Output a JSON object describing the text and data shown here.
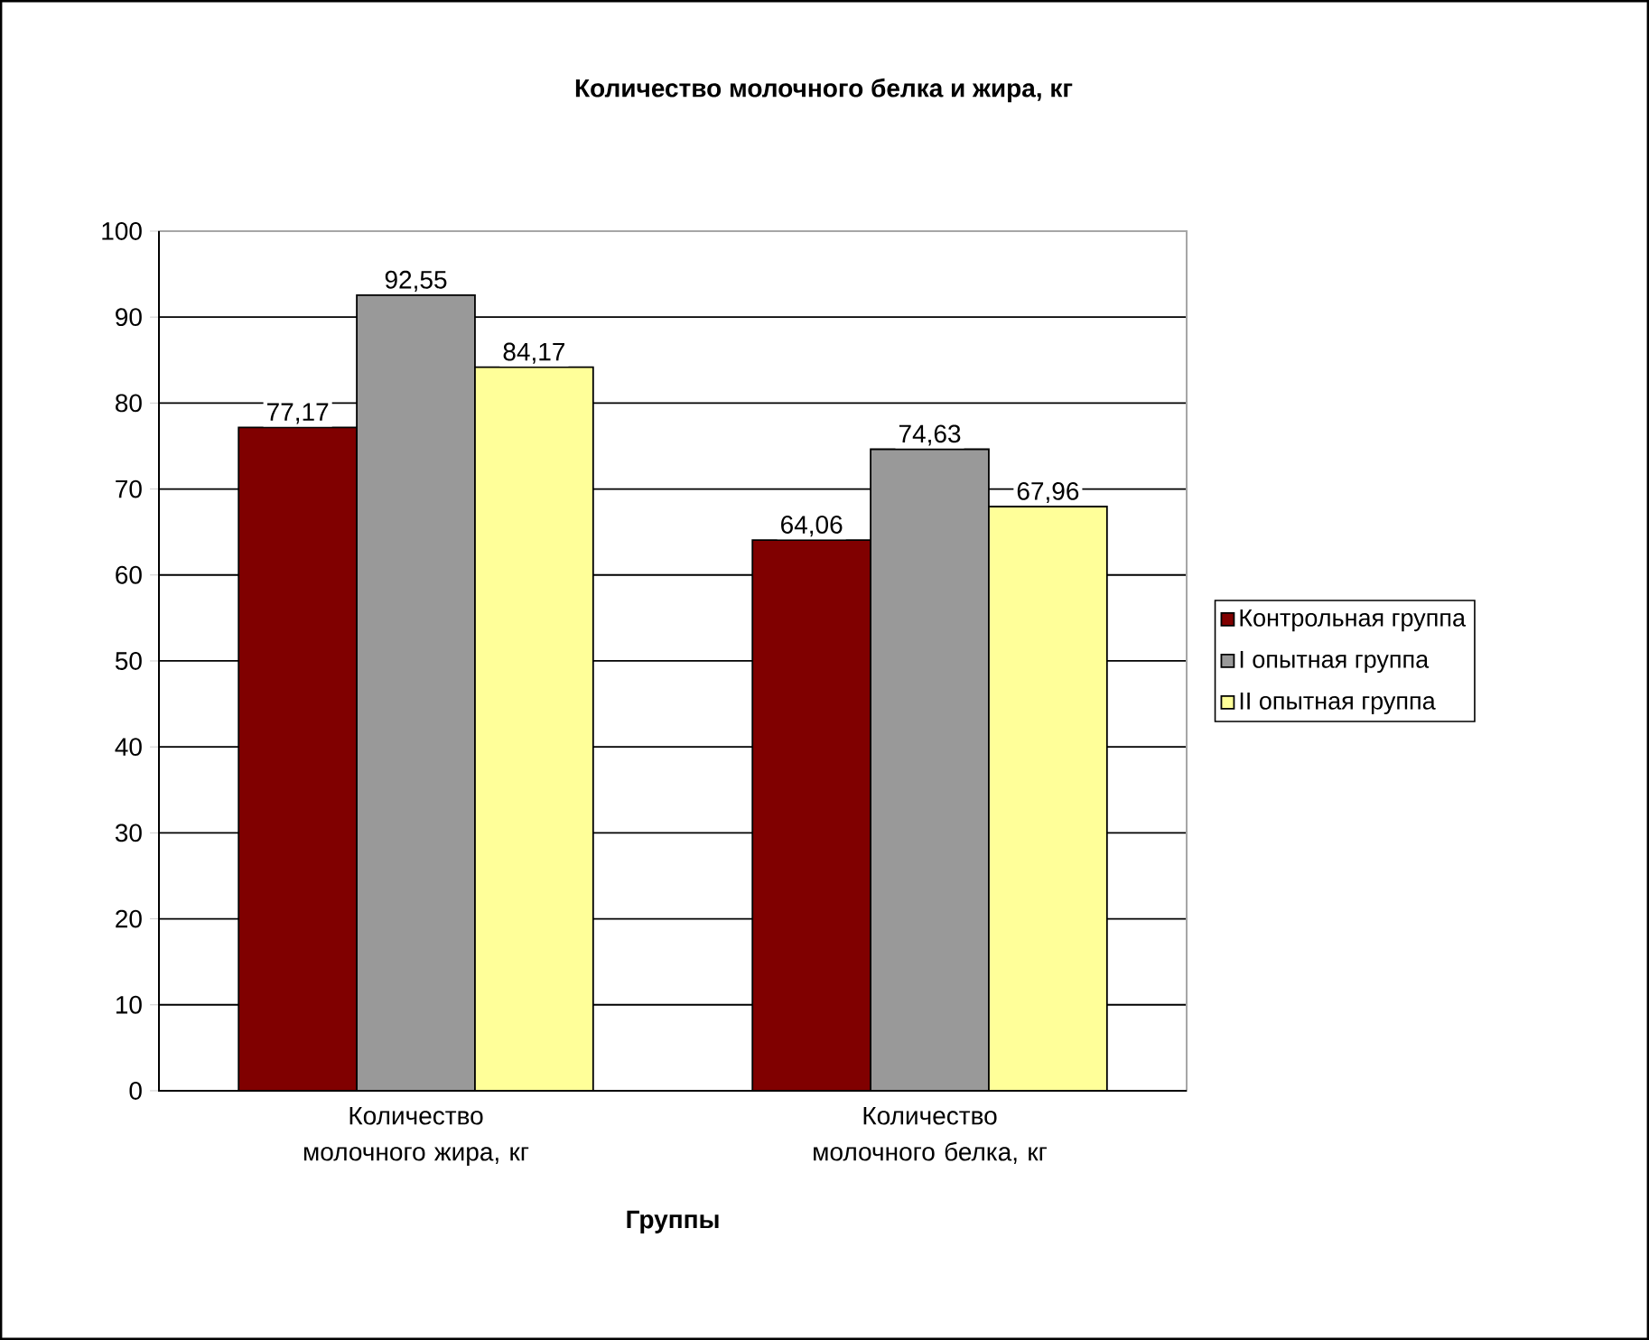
{
  "chart_data": {
    "type": "bar",
    "title": "Количество молочного белка и жира, кг",
    "xlabel": "Группы",
    "categories": [
      "Количество молочного жира, кг",
      "Количество молочного белка, кг"
    ],
    "series": [
      {
        "name": "Контрольная группа",
        "color": "#800000",
        "values": [
          77.17,
          64.06
        ],
        "value_labels": [
          "77,17",
          "64,06"
        ]
      },
      {
        "name": "I опытная группа",
        "color": "#999999",
        "values": [
          92.55,
          74.63
        ],
        "value_labels": [
          "92,55",
          "74,63"
        ]
      },
      {
        "name": "II опытная группа",
        "color": "#ffff99",
        "values": [
          84.17,
          67.96
        ],
        "value_labels": [
          "84,17",
          "67,96"
        ]
      }
    ],
    "ylim": [
      0,
      100
    ],
    "yticks": [
      0,
      10,
      20,
      30,
      40,
      50,
      60,
      70,
      80,
      90,
      100
    ],
    "grid": "y",
    "legend": "right"
  }
}
